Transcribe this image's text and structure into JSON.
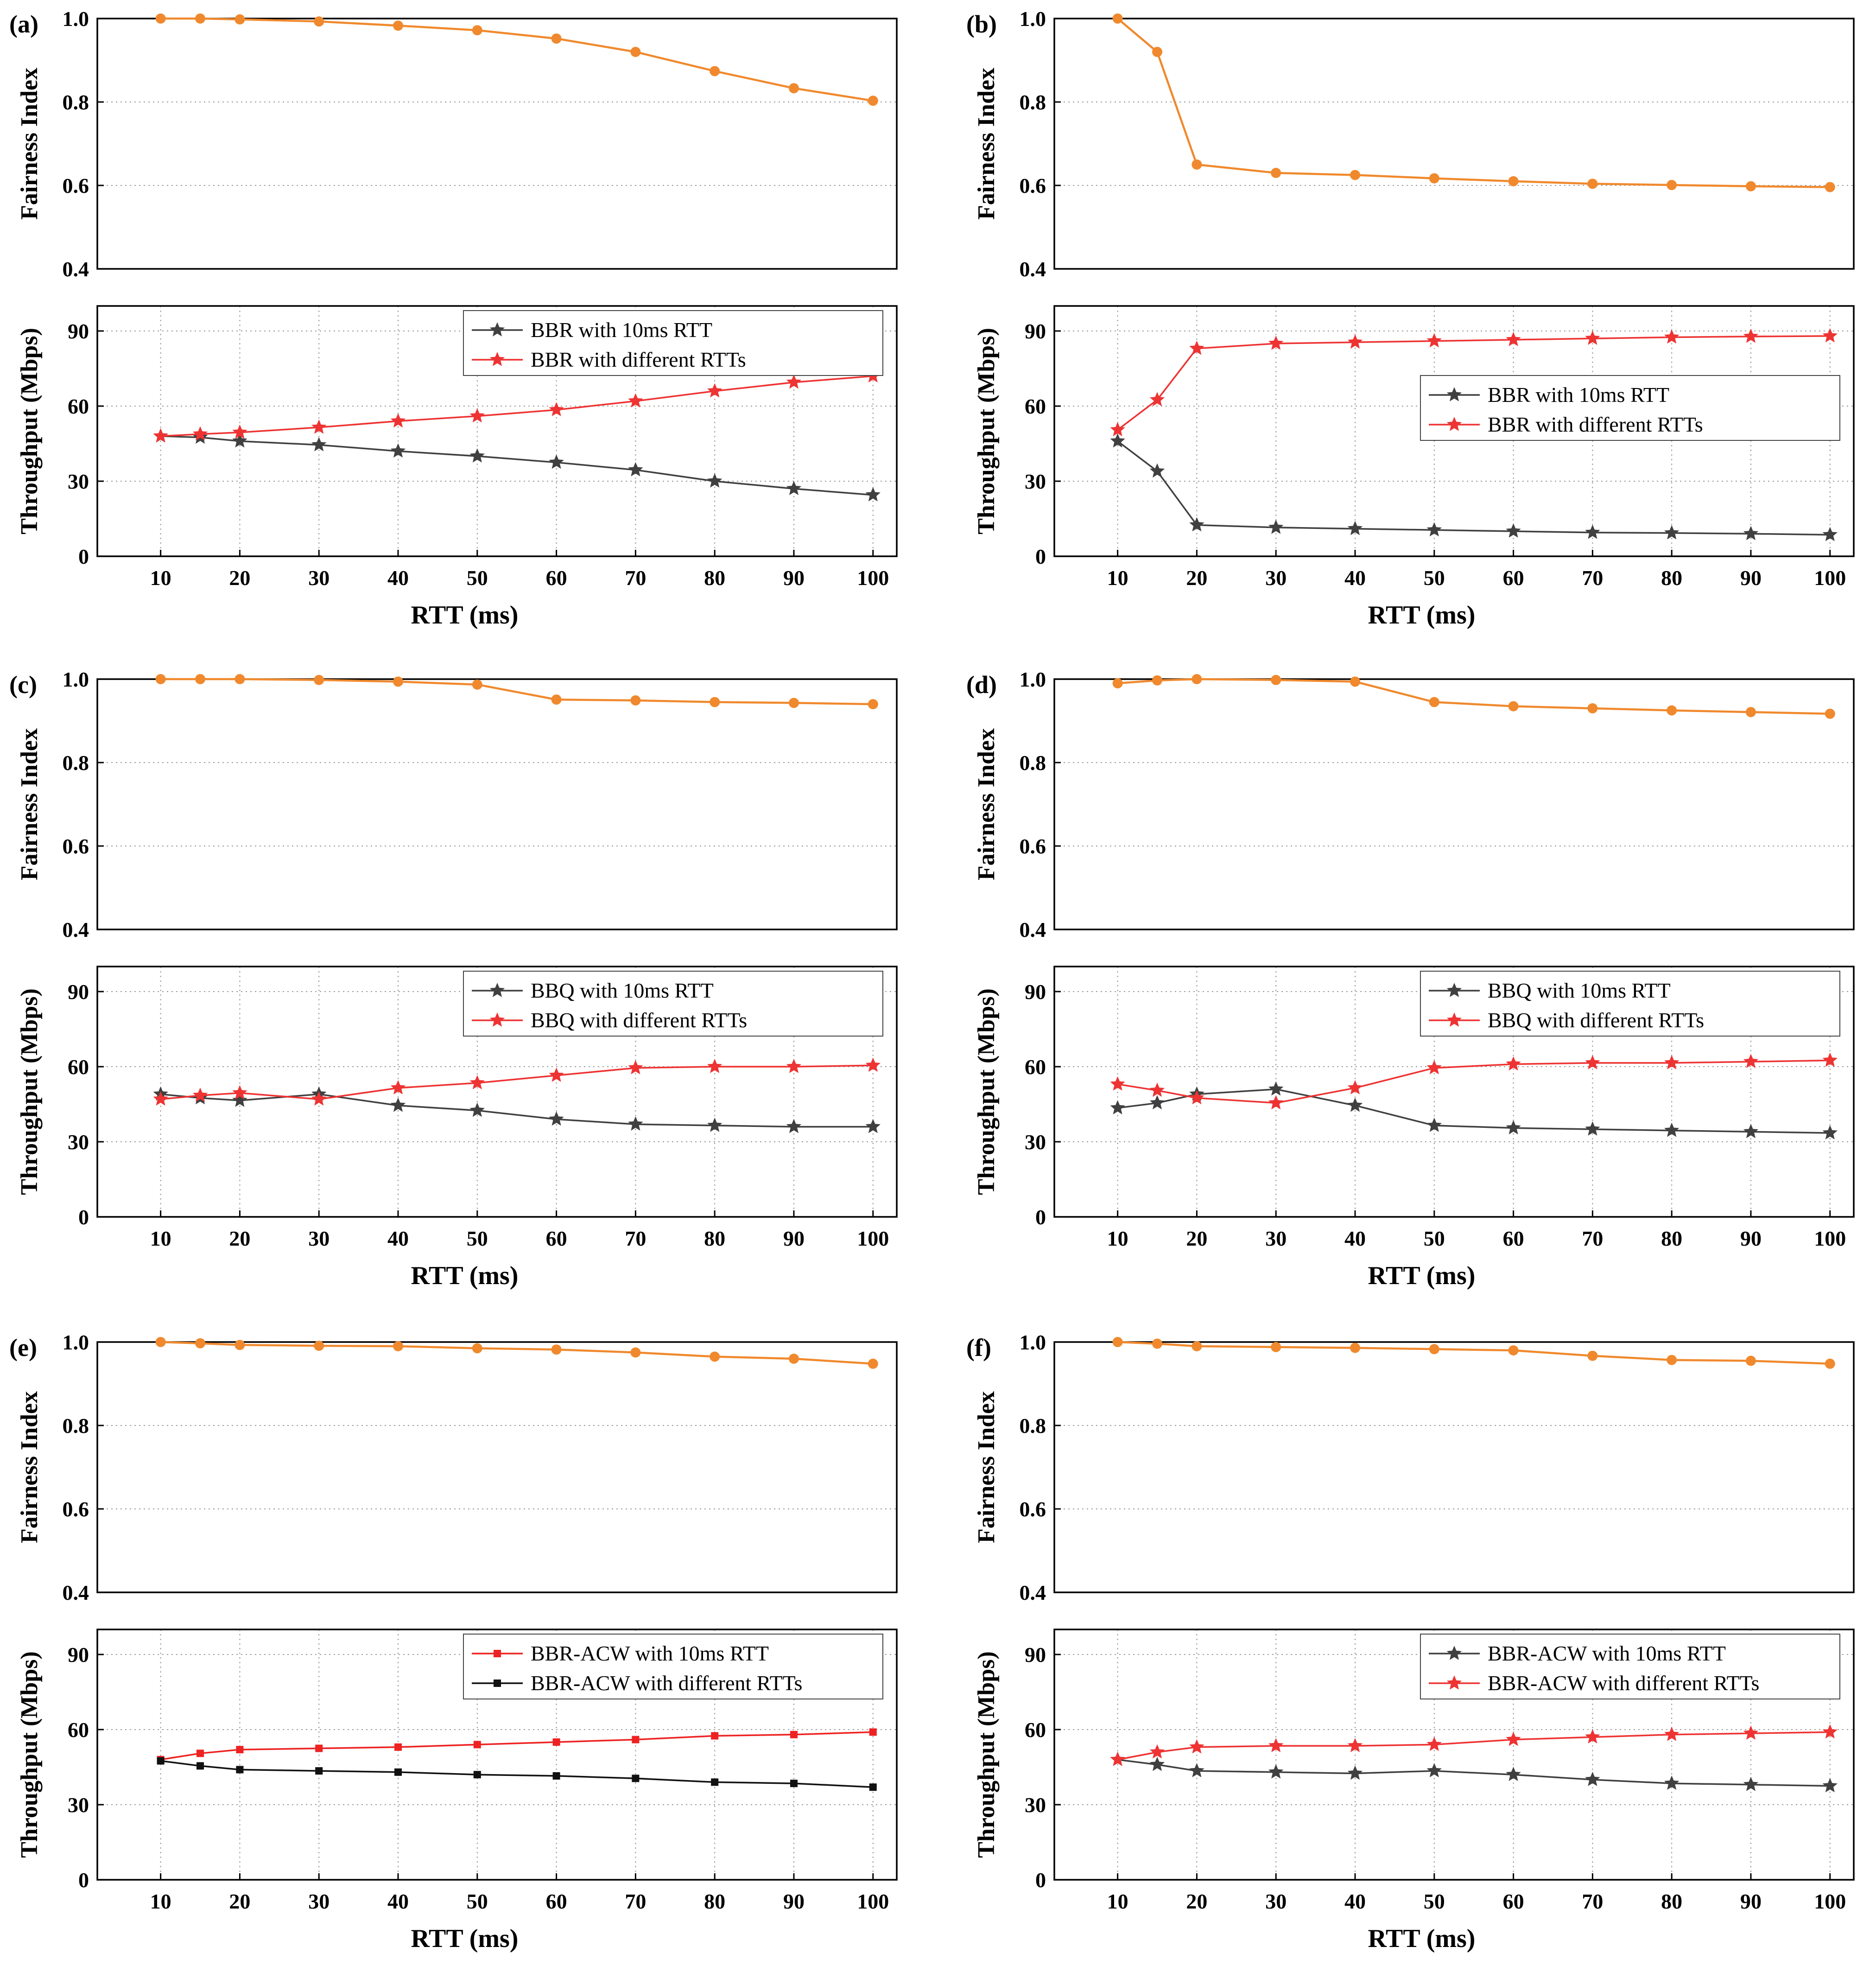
{
  "chart_data": [
    {
      "panel": "(a)",
      "fairness": {
        "type": "line",
        "ylabel": "Fairness Index",
        "ylim": [
          0.4,
          1.0
        ],
        "yticks": [
          "0.4",
          "0.6",
          "0.8",
          "1.0"
        ],
        "color": "#f0892d",
        "x": [
          10,
          15,
          20,
          30,
          40,
          50,
          60,
          70,
          80,
          90,
          100
        ],
        "values": [
          1.0,
          1.0,
          0.998,
          0.993,
          0.983,
          0.972,
          0.952,
          0.92,
          0.874,
          0.833,
          0.803
        ]
      },
      "throughput": {
        "type": "line",
        "ylabel": "Throughput (Mbps)",
        "ylim": [
          0,
          100
        ],
        "yticks": [
          "0",
          "30",
          "60",
          "90"
        ],
        "xticks": [
          "10",
          "20",
          "30",
          "40",
          "50",
          "60",
          "70",
          "80",
          "90",
          "100"
        ],
        "xlabel": "RTT (ms)",
        "legend_pos": "top-right",
        "x": [
          10,
          15,
          20,
          30,
          40,
          50,
          60,
          70,
          80,
          90,
          100
        ],
        "series": [
          {
            "name": "BBR with 10ms RTT",
            "color": "#404040",
            "marker": "star",
            "values": [
              48,
              47.5,
              46,
              44.5,
              42,
              40,
              37.5,
              34.5,
              30,
              27,
              24.5
            ]
          },
          {
            "name": "BBR with different RTTs",
            "color": "#ee3333",
            "marker": "star",
            "values": [
              48,
              48.8,
              49.5,
              51.5,
              54,
              56,
              58.5,
              62,
              66,
              69.5,
              72
            ]
          }
        ]
      }
    },
    {
      "panel": "(b)",
      "fairness": {
        "type": "line",
        "ylabel": "Fairness Index",
        "ylim": [
          0.4,
          1.0
        ],
        "yticks": [
          "0.4",
          "0.6",
          "0.8",
          "1.0"
        ],
        "color": "#f0892d",
        "x": [
          10,
          15,
          20,
          30,
          40,
          50,
          60,
          70,
          80,
          90,
          100
        ],
        "values": [
          1.0,
          0.92,
          0.65,
          0.63,
          0.625,
          0.617,
          0.61,
          0.604,
          0.601,
          0.598,
          0.596
        ]
      },
      "throughput": {
        "type": "line",
        "ylabel": "Throughput (Mbps)",
        "ylim": [
          0,
          100
        ],
        "yticks": [
          "0",
          "30",
          "60",
          "90"
        ],
        "xticks": [
          "10",
          "20",
          "30",
          "40",
          "50",
          "60",
          "70",
          "80",
          "90",
          "100"
        ],
        "xlabel": "RTT (ms)",
        "legend_pos": "center-right",
        "x": [
          10,
          15,
          20,
          30,
          40,
          50,
          60,
          70,
          80,
          90,
          100
        ],
        "series": [
          {
            "name": "BBR with 10ms RTT",
            "color": "#404040",
            "marker": "star",
            "values": [
              46,
              34,
              12.5,
              11.5,
              11,
              10.5,
              10,
              9.5,
              9.3,
              9,
              8.6
            ]
          },
          {
            "name": "BBR with different RTTs",
            "color": "#ee3333",
            "marker": "star",
            "values": [
              50.5,
              62.5,
              83,
              85,
              85.5,
              86,
              86.5,
              87,
              87.5,
              87.8,
              88
            ]
          }
        ]
      }
    },
    {
      "panel": "(c)",
      "fairness": {
        "type": "line",
        "ylabel": "Fairness Index",
        "ylim": [
          0.4,
          1.0
        ],
        "yticks": [
          "0.4",
          "0.6",
          "0.8",
          "1.0"
        ],
        "color": "#f0892d",
        "x": [
          10,
          15,
          20,
          30,
          40,
          50,
          60,
          70,
          80,
          90,
          100
        ],
        "values": [
          1.0,
          1.0,
          1.0,
          0.998,
          0.994,
          0.987,
          0.951,
          0.949,
          0.945,
          0.943,
          0.94
        ]
      },
      "throughput": {
        "type": "line",
        "ylabel": "Throughput (Mbps)",
        "ylim": [
          0,
          100
        ],
        "yticks": [
          "0",
          "30",
          "60",
          "90"
        ],
        "xticks": [
          "10",
          "20",
          "30",
          "40",
          "50",
          "60",
          "70",
          "80",
          "90",
          "100"
        ],
        "xlabel": "RTT (ms)",
        "legend_pos": "top-right",
        "x": [
          10,
          15,
          20,
          30,
          40,
          50,
          60,
          70,
          80,
          90,
          100
        ],
        "series": [
          {
            "name": "BBQ with 10ms RTT",
            "color": "#404040",
            "marker": "star",
            "values": [
              49,
              47.5,
              46.5,
              49,
              44.5,
              42.5,
              39,
              37,
              36.5,
              36,
              36
            ]
          },
          {
            "name": "BBQ with different RTTs",
            "color": "#ee3333",
            "marker": "star",
            "values": [
              47,
              48.5,
              49.5,
              47,
              51.5,
              53.5,
              56.5,
              59.5,
              60,
              60,
              60.5
            ]
          }
        ]
      }
    },
    {
      "panel": "(d)",
      "fairness": {
        "type": "line",
        "ylabel": "Fairness Index",
        "ylim": [
          0.4,
          1.0
        ],
        "yticks": [
          "0.4",
          "0.6",
          "0.8",
          "1.0"
        ],
        "color": "#f0892d",
        "x": [
          10,
          15,
          20,
          30,
          40,
          50,
          60,
          70,
          80,
          90,
          100
        ],
        "values": [
          0.99,
          0.997,
          1.0,
          0.998,
          0.994,
          0.945,
          0.935,
          0.93,
          0.925,
          0.921,
          0.917
        ]
      },
      "throughput": {
        "type": "line",
        "ylabel": "Throughput (Mbps)",
        "ylim": [
          0,
          100
        ],
        "yticks": [
          "0",
          "30",
          "60",
          "90"
        ],
        "xticks": [
          "10",
          "20",
          "30",
          "40",
          "50",
          "60",
          "70",
          "80",
          "90",
          "100"
        ],
        "xlabel": "RTT (ms)",
        "legend_pos": "top-right",
        "x": [
          10,
          15,
          20,
          30,
          40,
          50,
          60,
          70,
          80,
          90,
          100
        ],
        "series": [
          {
            "name": "BBQ with 10ms RTT",
            "color": "#404040",
            "marker": "star",
            "values": [
              43.5,
              45.5,
              49,
              51,
              44.5,
              36.5,
              35.5,
              35,
              34.5,
              34,
              33.5
            ]
          },
          {
            "name": "BBQ with different RTTs",
            "color": "#ee3333",
            "marker": "star",
            "values": [
              53,
              50.5,
              47.5,
              45.5,
              51.5,
              59.5,
              61,
              61.5,
              61.5,
              62,
              62.5
            ]
          }
        ]
      }
    },
    {
      "panel": "(e)",
      "fairness": {
        "type": "line",
        "ylabel": "Fairness Index",
        "ylim": [
          0.4,
          1.0
        ],
        "yticks": [
          "0.4",
          "0.6",
          "0.8",
          "1.0"
        ],
        "color": "#f0892d",
        "x": [
          10,
          15,
          20,
          30,
          40,
          50,
          60,
          70,
          80,
          90,
          100
        ],
        "values": [
          1.0,
          0.997,
          0.993,
          0.991,
          0.99,
          0.985,
          0.982,
          0.975,
          0.965,
          0.96,
          0.948
        ]
      },
      "throughput": {
        "type": "line",
        "ylabel": "Throughput (Mbps)",
        "ylim": [
          0,
          100
        ],
        "yticks": [
          "0",
          "30",
          "60",
          "90"
        ],
        "xticks": [
          "10",
          "20",
          "30",
          "40",
          "50",
          "60",
          "70",
          "80",
          "90",
          "100"
        ],
        "xlabel": "RTT (ms)",
        "legend_pos": "top-right",
        "x": [
          10,
          15,
          20,
          30,
          40,
          50,
          60,
          70,
          80,
          90,
          100
        ],
        "series": [
          {
            "name": "BBR-ACW with 10ms RTT",
            "color": "#ee2222",
            "marker": "square",
            "values": [
              48,
              50.5,
              52,
              52.5,
              53,
              54,
              55,
              56,
              57.5,
              58,
              59
            ]
          },
          {
            "name": "BBR-ACW with different RTTs",
            "color": "#111111",
            "marker": "square",
            "values": [
              47.5,
              45.5,
              44,
              43.5,
              43,
              42,
              41.5,
              40.5,
              39,
              38.5,
              37
            ]
          }
        ]
      }
    },
    {
      "panel": "(f)",
      "fairness": {
        "type": "line",
        "ylabel": "Fairness Index",
        "ylim": [
          0.4,
          1.0
        ],
        "yticks": [
          "0.4",
          "0.6",
          "0.8",
          "1.0"
        ],
        "color": "#f0892d",
        "x": [
          10,
          15,
          20,
          30,
          40,
          50,
          60,
          70,
          80,
          90,
          100
        ],
        "values": [
          1.0,
          0.996,
          0.99,
          0.988,
          0.986,
          0.983,
          0.98,
          0.967,
          0.957,
          0.955,
          0.948
        ]
      },
      "throughput": {
        "type": "line",
        "ylabel": "Throughput (Mbps)",
        "ylim": [
          0,
          100
        ],
        "yticks": [
          "0",
          "30",
          "60",
          "90"
        ],
        "xticks": [
          "10",
          "20",
          "30",
          "40",
          "50",
          "60",
          "70",
          "80",
          "90",
          "100"
        ],
        "xlabel": "RTT (ms)",
        "legend_pos": "top-right",
        "x": [
          10,
          15,
          20,
          30,
          40,
          50,
          60,
          70,
          80,
          90,
          100
        ],
        "series": [
          {
            "name": "BBR-ACW with 10ms RTT",
            "color": "#404040",
            "marker": "star",
            "values": [
              48,
              46,
              43.5,
              43,
              42.5,
              43.5,
              42,
              40,
              38.5,
              38,
              37.5
            ]
          },
          {
            "name": "BBR-ACW with different RTTs",
            "color": "#ee3333",
            "marker": "star",
            "values": [
              48,
              51,
              53,
              53.5,
              53.5,
              54,
              56,
              57,
              58,
              58.5,
              59
            ]
          }
        ]
      }
    }
  ]
}
